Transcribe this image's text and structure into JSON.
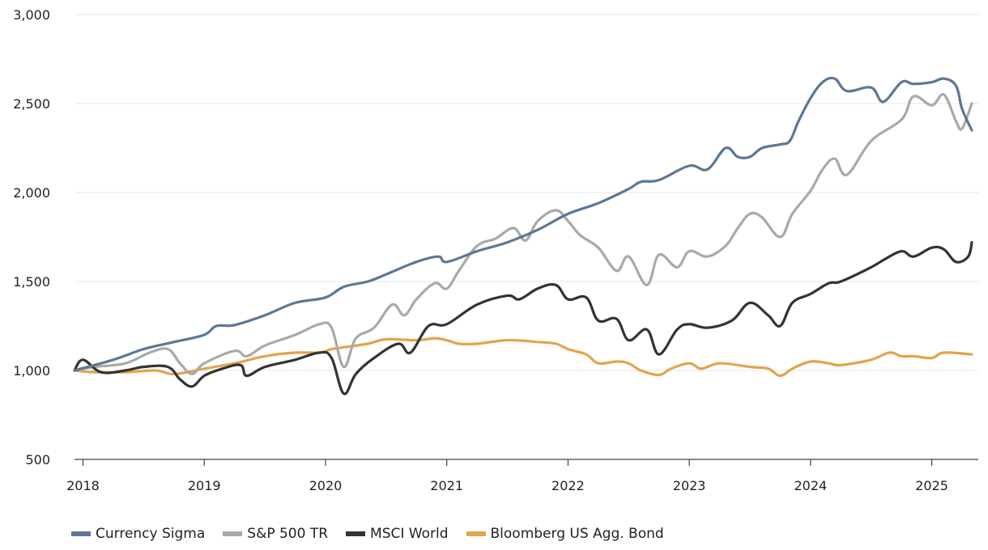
{
  "chart_data": {
    "type": "line",
    "title": "",
    "xlabel": "",
    "ylabel": "",
    "xlim": [
      2017.93,
      2025.33
    ],
    "ylim": [
      500,
      3000
    ],
    "y_ticks": [
      500,
      1000,
      1500,
      2000,
      2500,
      3000
    ],
    "y_tick_labels": [
      "500",
      "1,000",
      "1,500",
      "2,000",
      "2,500",
      "3,000"
    ],
    "x_ticks": [
      2018,
      2019,
      2020,
      2021,
      2022,
      2023,
      2024,
      2025
    ],
    "x_tick_labels": [
      "2018",
      "2019",
      "2020",
      "2021",
      "2022",
      "2023",
      "2024",
      "2025"
    ],
    "grid": "horizontal",
    "legend_position": "bottom-left",
    "series": [
      {
        "name": "Currency Sigma",
        "color": "#5b7894",
        "x": [
          2017.93,
          2018.25,
          2018.5,
          2018.75,
          2019.0,
          2019.1,
          2019.25,
          2019.5,
          2019.75,
          2020.0,
          2020.15,
          2020.35,
          2020.5,
          2020.75,
          2020.93,
          2021.0,
          2021.25,
          2021.5,
          2021.75,
          2022.0,
          2022.25,
          2022.5,
          2022.6,
          2022.75,
          2023.0,
          2023.15,
          2023.3,
          2023.4,
          2023.5,
          2023.6,
          2023.75,
          2023.83,
          2023.9,
          2024.0,
          2024.1,
          2024.2,
          2024.3,
          2024.5,
          2024.6,
          2024.75,
          2024.85,
          2025.0,
          2025.1,
          2025.2,
          2025.25,
          2025.33
        ],
        "values": [
          1000,
          1060,
          1120,
          1160,
          1200,
          1250,
          1255,
          1310,
          1380,
          1410,
          1470,
          1500,
          1540,
          1610,
          1640,
          1610,
          1670,
          1720,
          1790,
          1880,
          1940,
          2020,
          2060,
          2070,
          2150,
          2130,
          2250,
          2200,
          2200,
          2250,
          2270,
          2290,
          2400,
          2530,
          2620,
          2640,
          2570,
          2590,
          2510,
          2620,
          2610,
          2620,
          2640,
          2600,
          2470,
          2350
        ]
      },
      {
        "name": "S&P 500 TR",
        "color": "#a9a9a9",
        "x": [
          2017.93,
          2018.1,
          2018.35,
          2018.55,
          2018.7,
          2018.8,
          2018.9,
          2019.0,
          2019.25,
          2019.35,
          2019.5,
          2019.75,
          2019.95,
          2020.05,
          2020.15,
          2020.25,
          2020.4,
          2020.55,
          2020.65,
          2020.75,
          2020.9,
          2021.0,
          2021.1,
          2021.25,
          2021.4,
          2021.55,
          2021.65,
          2021.75,
          2021.9,
          2022.0,
          2022.1,
          2022.25,
          2022.4,
          2022.5,
          2022.65,
          2022.75,
          2022.9,
          2023.0,
          2023.15,
          2023.3,
          2023.4,
          2023.5,
          2023.6,
          2023.75,
          2023.85,
          2024.0,
          2024.1,
          2024.2,
          2024.3,
          2024.5,
          2024.75,
          2024.85,
          2025.0,
          2025.1,
          2025.2,
          2025.25,
          2025.33
        ],
        "values": [
          1000,
          1020,
          1040,
          1100,
          1120,
          1040,
          980,
          1040,
          1110,
          1080,
          1140,
          1200,
          1260,
          1240,
          1020,
          1180,
          1240,
          1370,
          1310,
          1400,
          1490,
          1460,
          1560,
          1700,
          1740,
          1800,
          1730,
          1840,
          1900,
          1840,
          1760,
          1690,
          1560,
          1640,
          1480,
          1650,
          1580,
          1670,
          1640,
          1700,
          1800,
          1880,
          1860,
          1750,
          1880,
          2010,
          2130,
          2190,
          2100,
          2290,
          2410,
          2540,
          2490,
          2550,
          2400,
          2360,
          2500
        ]
      },
      {
        "name": "MSCI World",
        "color": "#333333",
        "x": [
          2017.93,
          2018.0,
          2018.15,
          2018.35,
          2018.5,
          2018.7,
          2018.8,
          2018.9,
          2019.0,
          2019.15,
          2019.3,
          2019.35,
          2019.5,
          2019.75,
          2019.95,
          2020.05,
          2020.15,
          2020.25,
          2020.4,
          2020.6,
          2020.7,
          2020.85,
          2021.0,
          2021.25,
          2021.5,
          2021.6,
          2021.75,
          2021.9,
          2022.0,
          2022.15,
          2022.25,
          2022.4,
          2022.5,
          2022.65,
          2022.75,
          2022.9,
          2023.0,
          2023.15,
          2023.35,
          2023.5,
          2023.65,
          2023.75,
          2023.85,
          2024.0,
          2024.15,
          2024.25,
          2024.5,
          2024.6,
          2024.75,
          2024.85,
          2025.0,
          2025.1,
          2025.2,
          2025.3,
          2025.33
        ],
        "values": [
          1000,
          1060,
          990,
          1000,
          1020,
          1020,
          950,
          910,
          970,
          1010,
          1030,
          970,
          1020,
          1060,
          1100,
          1070,
          870,
          980,
          1070,
          1150,
          1100,
          1250,
          1260,
          1370,
          1420,
          1400,
          1460,
          1480,
          1400,
          1410,
          1280,
          1290,
          1170,
          1230,
          1090,
          1230,
          1260,
          1240,
          1280,
          1380,
          1310,
          1250,
          1380,
          1430,
          1490,
          1500,
          1580,
          1620,
          1670,
          1640,
          1690,
          1680,
          1610,
          1640,
          1720
        ]
      },
      {
        "name": "Bloomberg US Agg. Bond",
        "color": "#e3a44c",
        "x": [
          2017.93,
          2018.1,
          2018.35,
          2018.6,
          2018.75,
          2019.0,
          2019.25,
          2019.5,
          2019.75,
          2019.95,
          2020.05,
          2020.15,
          2020.35,
          2020.5,
          2020.75,
          2020.9,
          2021.0,
          2021.1,
          2021.25,
          2021.5,
          2021.75,
          2021.9,
          2022.0,
          2022.15,
          2022.25,
          2022.4,
          2022.5,
          2022.6,
          2022.75,
          2022.85,
          2023.0,
          2023.1,
          2023.25,
          2023.5,
          2023.65,
          2023.75,
          2023.85,
          2024.0,
          2024.15,
          2024.25,
          2024.5,
          2024.65,
          2024.75,
          2024.85,
          2025.0,
          2025.1,
          2025.33
        ],
        "values": [
          1000,
          990,
          990,
          1000,
          980,
          1010,
          1040,
          1080,
          1100,
          1100,
          1120,
          1130,
          1150,
          1175,
          1170,
          1180,
          1170,
          1150,
          1150,
          1170,
          1160,
          1150,
          1120,
          1090,
          1040,
          1050,
          1040,
          1000,
          975,
          1010,
          1040,
          1010,
          1040,
          1020,
          1010,
          970,
          1010,
          1050,
          1040,
          1030,
          1060,
          1100,
          1080,
          1080,
          1070,
          1100,
          1090
        ]
      }
    ]
  }
}
